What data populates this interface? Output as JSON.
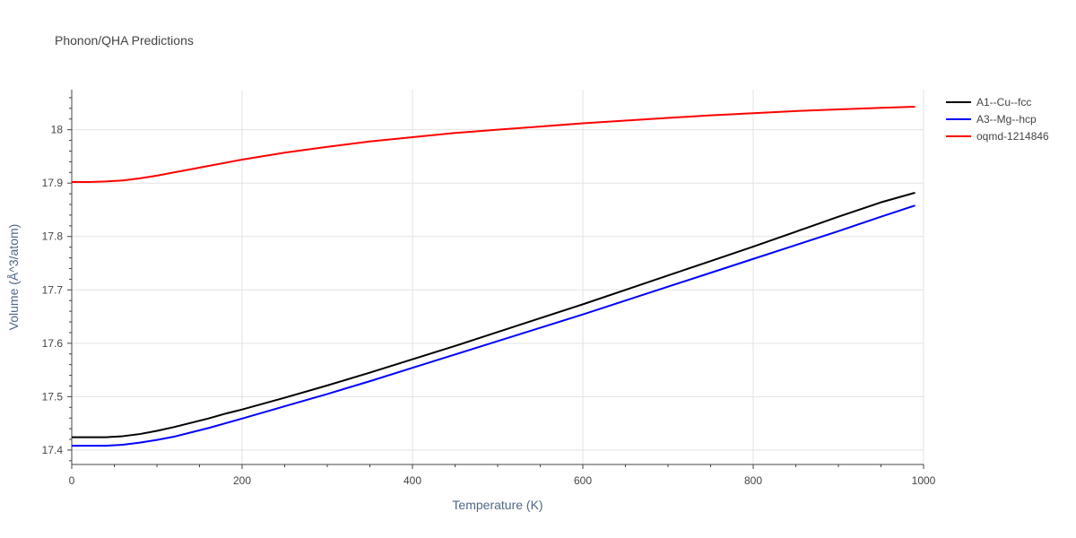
{
  "chart_data": {
    "type": "line",
    "title": "Phonon/QHA Predictions",
    "xlabel": "Temperature (K)",
    "ylabel": "Volume (Å^3/atom)",
    "xlim": [
      0,
      1000
    ],
    "ylim": [
      17.373,
      18.075
    ],
    "x_ticks": [
      0,
      200,
      400,
      600,
      800,
      1000
    ],
    "y_ticks": [
      17.4,
      17.5,
      17.6,
      17.7,
      17.8,
      17.9,
      18
    ],
    "y_tick_labels": [
      "17.4",
      "17.5",
      "17.6",
      "17.7",
      "17.8",
      "17.9",
      "18"
    ],
    "grid": true,
    "legend_position": "top-right",
    "series": [
      {
        "name": "A1--Cu--fcc",
        "color": "#000000",
        "x": [
          0,
          20,
          40,
          60,
          80,
          100,
          120,
          140,
          160,
          180,
          200,
          250,
          300,
          350,
          400,
          450,
          500,
          550,
          600,
          650,
          700,
          750,
          800,
          850,
          900,
          950,
          990
        ],
        "y": [
          17.424,
          17.424,
          17.424,
          17.426,
          17.43,
          17.436,
          17.443,
          17.451,
          17.459,
          17.468,
          17.476,
          17.498,
          17.521,
          17.545,
          17.57,
          17.595,
          17.621,
          17.647,
          17.673,
          17.7,
          17.727,
          17.754,
          17.781,
          17.809,
          17.837,
          17.864,
          17.882
        ]
      },
      {
        "name": "A3--Mg--hcp",
        "color": "#0000ff",
        "x": [
          0,
          20,
          40,
          60,
          80,
          100,
          120,
          140,
          160,
          180,
          200,
          250,
          300,
          350,
          400,
          450,
          500,
          550,
          600,
          650,
          700,
          750,
          800,
          850,
          900,
          950,
          990
        ],
        "y": [
          17.408,
          17.408,
          17.408,
          17.41,
          17.414,
          17.419,
          17.425,
          17.433,
          17.441,
          17.45,
          17.459,
          17.482,
          17.505,
          17.529,
          17.554,
          17.579,
          17.604,
          17.629,
          17.654,
          17.68,
          17.706,
          17.732,
          17.758,
          17.784,
          17.81,
          17.837,
          17.858
        ]
      },
      {
        "name": "oqmd-1214846",
        "color": "#ff0000",
        "x": [
          0,
          20,
          40,
          60,
          80,
          100,
          120,
          140,
          160,
          180,
          200,
          250,
          300,
          350,
          400,
          450,
          500,
          550,
          600,
          650,
          700,
          750,
          800,
          850,
          900,
          950,
          990
        ],
        "y": [
          17.902,
          17.902,
          17.903,
          17.905,
          17.909,
          17.914,
          17.92,
          17.926,
          17.932,
          17.938,
          17.944,
          17.957,
          17.968,
          17.978,
          17.986,
          17.994,
          18.0,
          18.006,
          18.012,
          18.017,
          18.022,
          18.027,
          18.031,
          18.035,
          18.038,
          18.041,
          18.043
        ]
      }
    ]
  }
}
